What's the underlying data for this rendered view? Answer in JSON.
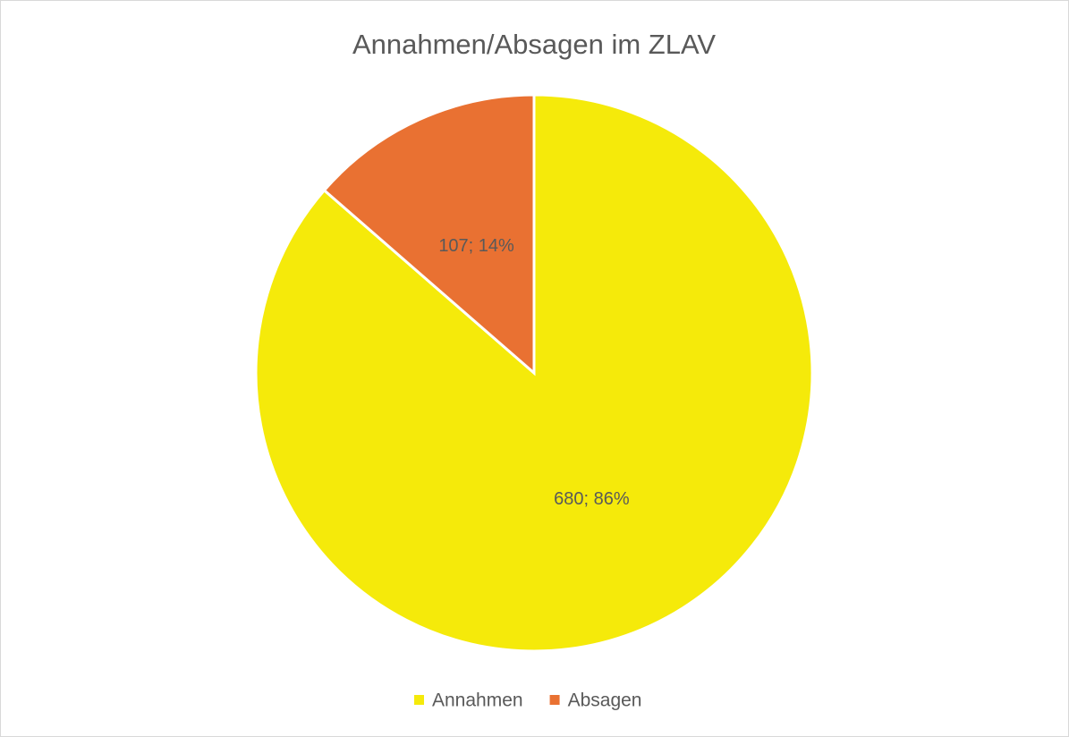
{
  "chart_data": {
    "type": "pie",
    "title": "Annahmen/Absagen im ZLAV",
    "categories": [
      "Annahmen",
      "Absagen"
    ],
    "values": [
      680,
      107
    ],
    "value_labels": [
      "680; 86%",
      "107; 14%"
    ],
    "colors": [
      "#f5ea0a",
      "#e97132"
    ],
    "legend": "bottom"
  }
}
